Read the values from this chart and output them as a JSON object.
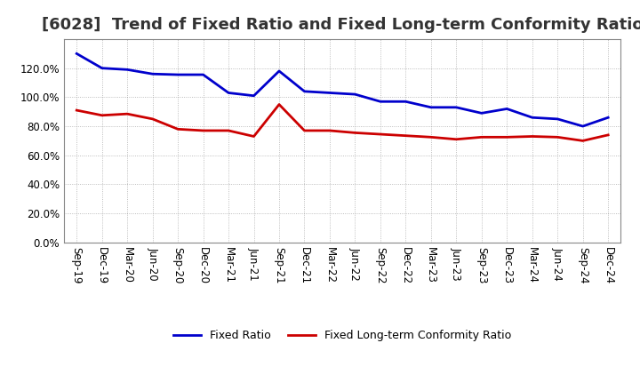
{
  "title": "[6028]  Trend of Fixed Ratio and Fixed Long-term Conformity Ratio",
  "x_labels": [
    "Sep-19",
    "Dec-19",
    "Mar-20",
    "Jun-20",
    "Sep-20",
    "Dec-20",
    "Mar-21",
    "Jun-21",
    "Sep-21",
    "Dec-21",
    "Mar-22",
    "Jun-22",
    "Sep-22",
    "Dec-22",
    "Mar-23",
    "Jun-23",
    "Sep-23",
    "Dec-23",
    "Mar-24",
    "Jun-24",
    "Sep-24",
    "Dec-24"
  ],
  "fixed_ratio": [
    1.3,
    1.2,
    1.19,
    1.16,
    1.155,
    1.155,
    1.03,
    1.01,
    1.18,
    1.04,
    1.03,
    1.02,
    0.97,
    0.97,
    0.93,
    0.93,
    0.89,
    0.92,
    0.86,
    0.85,
    0.8,
    0.86
  ],
  "fixed_lt_ratio": [
    0.91,
    0.875,
    0.885,
    0.85,
    0.78,
    0.77,
    0.77,
    0.73,
    0.95,
    0.77,
    0.77,
    0.755,
    0.745,
    0.735,
    0.725,
    0.71,
    0.725,
    0.725,
    0.73,
    0.725,
    0.7,
    0.74
  ],
  "fixed_ratio_color": "#0000CC",
  "fixed_lt_ratio_color": "#CC0000",
  "ylim": [
    0.0,
    1.4
  ],
  "yticks": [
    0.0,
    0.2,
    0.4,
    0.6,
    0.8,
    1.0,
    1.2
  ],
  "background_color": "#ffffff",
  "grid_color": "#888888",
  "title_fontsize": 13,
  "tick_fontsize": 8.5,
  "legend_fixed_ratio": "Fixed Ratio",
  "legend_fixed_lt_ratio": "Fixed Long-term Conformity Ratio"
}
